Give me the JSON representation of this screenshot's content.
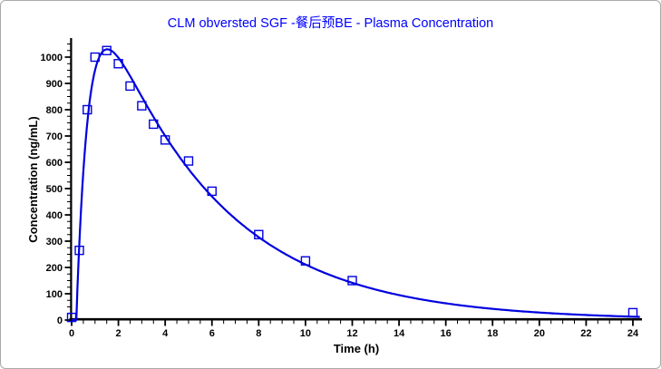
{
  "colors": {
    "title": "#0000ff",
    "series": "#0000e0",
    "axis": "#000000",
    "background": "#ffffff",
    "frame_border": "#a9a9a9"
  },
  "chart_data": {
    "type": "line",
    "title": "CLM obversted SGF -餐后预BE - Plasma Concentration",
    "xlabel": "Time (h)",
    "ylabel": "Concentration (ng/mL)",
    "xlim": [
      0,
      24.4
    ],
    "ylim": [
      0,
      1070
    ],
    "x_major_ticks": [
      0,
      2,
      4,
      6,
      8,
      10,
      12,
      14,
      16,
      18,
      20,
      22,
      24
    ],
    "x_minor_tick_step": 0.5,
    "y_major_ticks": [
      0,
      100,
      200,
      300,
      400,
      500,
      600,
      700,
      800,
      900,
      1000
    ],
    "y_minor_tick_step": 25,
    "grid": false,
    "legend": false,
    "series": [
      {
        "name": "observed-concentrations",
        "marker": "open-square",
        "color": "#0000e0",
        "points": [
          [
            0,
            10
          ],
          [
            0.33,
            265
          ],
          [
            0.67,
            800
          ],
          [
            1,
            1000
          ],
          [
            1.5,
            1025
          ],
          [
            2,
            975
          ],
          [
            2.5,
            890
          ],
          [
            3,
            815
          ],
          [
            3.5,
            745
          ],
          [
            4,
            685
          ],
          [
            5,
            605
          ],
          [
            6,
            490
          ],
          [
            8,
            325
          ],
          [
            10,
            225
          ],
          [
            12,
            150
          ],
          [
            24,
            28
          ]
        ]
      },
      {
        "name": "predicted-curve",
        "marker": "none",
        "color": "#0000e0",
        "model": "C(t) = A*(exp(-ke*(t-tlag)) - exp(-ka*(t-tlag)))",
        "params": {
          "A": 1500,
          "ka": 1.9,
          "ke": 0.2,
          "tlag": 0.2
        },
        "t_range": [
          0,
          24.35
        ]
      }
    ]
  }
}
